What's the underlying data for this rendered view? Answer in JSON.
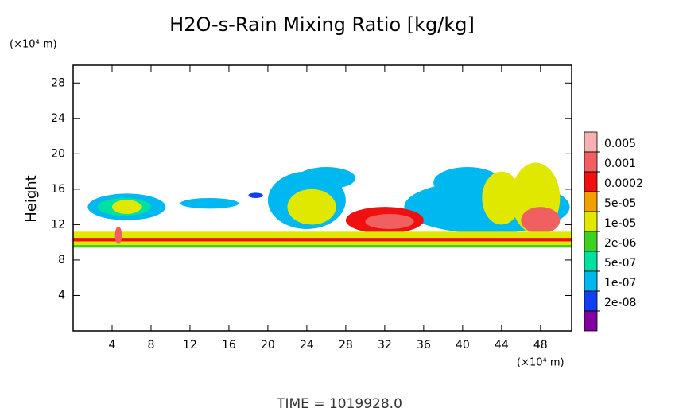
{
  "chart_data": {
    "type": "contour",
    "title": "H2O-s-Rain Mixing Ratio [kg/kg]",
    "y_label": "Height",
    "y_unit": "(×10⁴ m)",
    "x_unit": "(×10⁴ m)",
    "footer": "TIME = 1019928.0",
    "xlim": [
      0,
      51.2
    ],
    "ylim": [
      0,
      30
    ],
    "xticks": [
      4,
      8,
      12,
      16,
      20,
      24,
      28,
      32,
      36,
      40,
      44,
      48
    ],
    "yticks": [
      4,
      8,
      12,
      16,
      20,
      24,
      28
    ],
    "levels": [
      0.005,
      0.001,
      0.0002,
      {
        "value": 5e-05,
        "label": "5e-05"
      },
      {
        "value": 1e-05,
        "label": "1e-05"
      },
      {
        "value": 2e-06,
        "label": "2e-06"
      },
      {
        "value": 5e-07,
        "label": "5e-07"
      },
      {
        "value": 1e-07,
        "label": "1e-07"
      },
      {
        "value": 2e-08,
        "label": "2e-08"
      }
    ],
    "colors": [
      "#f8b0b0",
      "#f06060",
      "#f01010",
      "#f0a000",
      "#e0e800",
      "#40d020",
      "#00e0a0",
      "#00b8f0",
      "#1040f0",
      "#8000a0"
    ],
    "regions": [
      {
        "x": [
          1.5,
          9.5
        ],
        "y": [
          12.5,
          15.5
        ],
        "value": 2e-07
      },
      {
        "x": [
          2.5,
          8
        ],
        "y": [
          13,
          15
        ],
        "value": 1e-06
      },
      {
        "x": [
          4,
          7
        ],
        "y": [
          13.2,
          14.8
        ],
        "value": 3e-05
      },
      {
        "x": [
          11,
          17
        ],
        "y": [
          13.8,
          15
        ],
        "value": 2e-07
      },
      {
        "x": [
          18,
          19.5
        ],
        "y": [
          15,
          15.6
        ],
        "value": 5e-08
      },
      {
        "x": [
          23,
          29
        ],
        "y": [
          16,
          18.5
        ],
        "value": 2e-07
      },
      {
        "x": [
          20,
          28
        ],
        "y": [
          11.5,
          18
        ],
        "value": 5e-07
      },
      {
        "x": [
          22,
          27
        ],
        "y": [
          12,
          16
        ],
        "value": 3e-05
      },
      {
        "x": [
          34,
          51
        ],
        "y": [
          11,
          17
        ],
        "value": 5e-07
      },
      {
        "x": [
          37,
          44
        ],
        "y": [
          15,
          18.5
        ],
        "value": 2e-07
      },
      {
        "x": [
          28,
          36
        ],
        "y": [
          11,
          14
        ],
        "value": 0.0003
      },
      {
        "x": [
          30,
          35
        ],
        "y": [
          11.5,
          13.2
        ],
        "value": 0.002
      },
      {
        "x": [
          42,
          46
        ],
        "y": [
          12,
          18
        ],
        "value": 3e-05
      },
      {
        "x": [
          45,
          50
        ],
        "y": [
          11,
          19
        ],
        "value": 3e-05
      },
      {
        "x": [
          46,
          50
        ],
        "y": [
          11,
          14
        ],
        "value": 0.002
      },
      {
        "x": [
          0,
          51.2
        ],
        "y": [
          10.5,
          11.2
        ],
        "value": 2e-05
      },
      {
        "x": [
          0,
          51.2
        ],
        "y": [
          10.1,
          10.5
        ],
        "value": 0.0003
      },
      {
        "x": [
          0,
          51.2
        ],
        "y": [
          9.7,
          10.1
        ],
        "value": 3e-05
      },
      {
        "x": [
          0,
          51.2
        ],
        "y": [
          9.4,
          9.7
        ],
        "value": 3e-06
      },
      {
        "x": [
          4.3,
          5
        ],
        "y": [
          9.8,
          11.8
        ],
        "value": 0.002
      }
    ]
  }
}
